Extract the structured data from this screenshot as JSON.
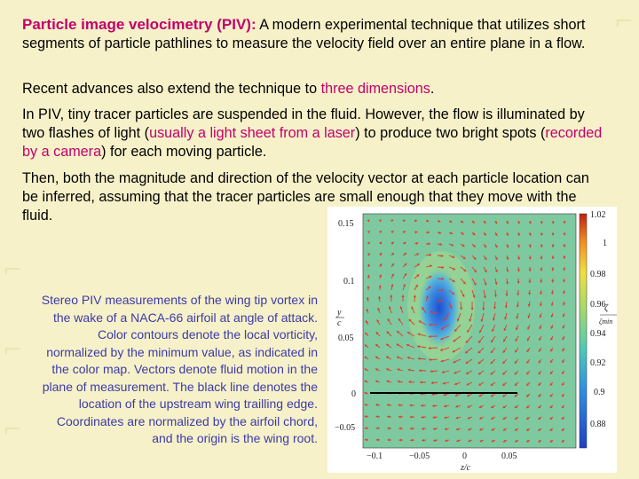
{
  "text": {
    "p1_title": "Particle image velocimetry (PIV):",
    "p1_body": " A modern experimental technique that utilizes short segments of particle pathlines to measure the velocity field over an entire plane in a flow.",
    "p2_a": "Recent advances also extend the technique to ",
    "p2_hl": "three dimensions",
    "p2_b": ".",
    "p3_a": "In PIV, tiny tracer particles are suspended in the fluid. However, the flow is illuminated by two flashes of light (",
    "p3_hl1": "usually a light sheet from a laser",
    "p3_b": ") to produce two bright spots (",
    "p3_hl2": "recorded by a camera",
    "p3_c": ") for each moving particle.",
    "p4": "Then, both the magnitude and direction of the velocity vector at each particle location can be inferred, assuming that the tracer particles are small enough that they move with the fluid."
  },
  "caption": "Stereo PIV measurements of the wing tip vortex in the wake of a NACA-66 airfoil at angle of attack. Color contours denote the local vorticity, normalized by the minimum value, as indicated in the color map. Vectors denote fluid motion in the plane of measurement. The black line denotes the location of the upstream wing trailling edge. Coordinates are normalized by the airfoil chord, and the origin is the wing root.",
  "figure": {
    "y_axis_label_num": "y",
    "y_axis_label_den": "c",
    "x_axis_label": "z/c",
    "y_ticks": [
      "0.15",
      "0.1",
      "0.05",
      "0",
      "−0.05"
    ],
    "x_ticks": [
      "−0.1",
      "−0.05",
      "0",
      "0.05"
    ],
    "colorbar_ticks": [
      "1.02",
      "1",
      "0.98",
      "0.96",
      "0.94",
      "0.92",
      "0.9",
      "0.88"
    ],
    "colorbar_label_num": "ζ",
    "colorbar_label_den": "ζmin",
    "colors": {
      "field": "#7fc9a0",
      "vortex_core": "#2f6fd6",
      "arrow": "#e03a2a",
      "edge_line": "#000000"
    }
  }
}
